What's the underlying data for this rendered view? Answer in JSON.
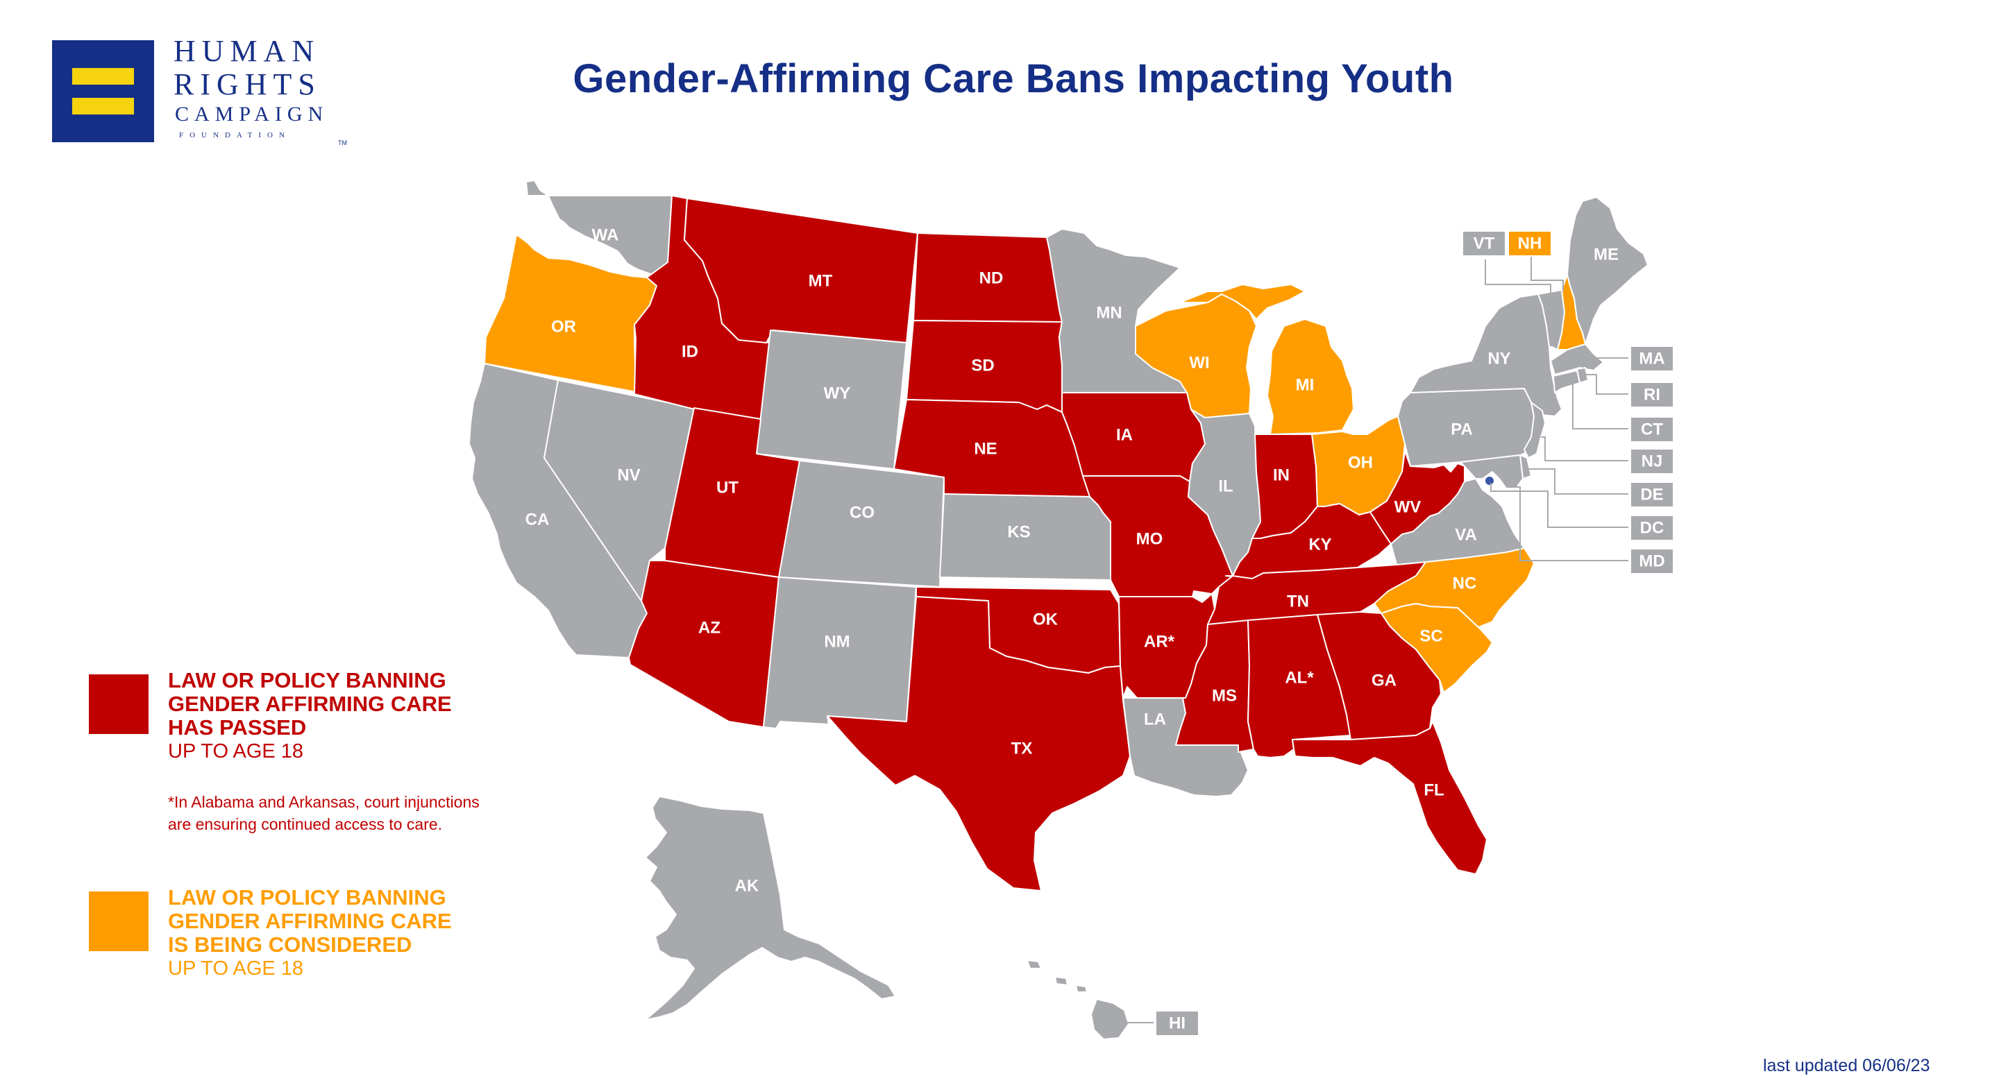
{
  "logo": {
    "line1": "HUMAN",
    "line2": "RIGHTS",
    "line3": "CAMPAIGN",
    "line4": "FOUNDATION",
    "tm": "TM",
    "mark_color": "#152f86",
    "bar_color": "#f5d40f"
  },
  "title": "Gender-Affirming Care Bans Impacting Youth",
  "legend": [
    {
      "heading": [
        "LAW OR POLICY BANNING",
        "GENDER AFFIRMING CARE",
        "HAS PASSED"
      ],
      "sub": "UP TO AGE 18",
      "color": "#c00000"
    },
    {
      "heading": [
        "LAW OR POLICY BANNING",
        "GENDER AFFIRMING CARE",
        "IS BEING CONSIDERED"
      ],
      "sub": "UP TO AGE 18",
      "color": "#ff9d00"
    }
  ],
  "footnote": [
    "*In Alabama and Arkansas, court injunctions",
    "are ensuring continued access to care."
  ],
  "last_updated": "last updated 06/06/23",
  "status_colors": {
    "passed": "#c00000",
    "considered": "#ff9d00",
    "none": "#a7a9ac"
  },
  "states": {
    "WA": {
      "label": "WA",
      "status": "none"
    },
    "OR": {
      "label": "OR",
      "status": "considered"
    },
    "CA": {
      "label": "CA",
      "status": "none"
    },
    "ID": {
      "label": "ID",
      "status": "passed"
    },
    "NV": {
      "label": "NV",
      "status": "none"
    },
    "MT": {
      "label": "MT",
      "status": "passed"
    },
    "WY": {
      "label": "WY",
      "status": "none"
    },
    "UT": {
      "label": "UT",
      "status": "passed"
    },
    "AZ": {
      "label": "AZ",
      "status": "passed"
    },
    "CO": {
      "label": "CO",
      "status": "none"
    },
    "NM": {
      "label": "NM",
      "status": "none"
    },
    "ND": {
      "label": "ND",
      "status": "passed"
    },
    "SD": {
      "label": "SD",
      "status": "passed"
    },
    "NE": {
      "label": "NE",
      "status": "passed"
    },
    "KS": {
      "label": "KS",
      "status": "none"
    },
    "OK": {
      "label": "OK",
      "status": "passed"
    },
    "TX": {
      "label": "TX",
      "status": "passed"
    },
    "MN": {
      "label": "MN",
      "status": "none"
    },
    "IA": {
      "label": "IA",
      "status": "passed"
    },
    "MO": {
      "label": "MO",
      "status": "passed"
    },
    "AR": {
      "label": "AR*",
      "status": "passed"
    },
    "LA": {
      "label": "LA",
      "status": "none"
    },
    "WI": {
      "label": "WI",
      "status": "considered"
    },
    "IL": {
      "label": "IL",
      "status": "none"
    },
    "MI": {
      "label": "MI",
      "status": "considered"
    },
    "IN": {
      "label": "IN",
      "status": "passed"
    },
    "OH": {
      "label": "OH",
      "status": "considered"
    },
    "KY": {
      "label": "KY",
      "status": "passed"
    },
    "TN": {
      "label": "TN",
      "status": "passed"
    },
    "MS": {
      "label": "MS",
      "status": "passed"
    },
    "AL": {
      "label": "AL*",
      "status": "passed"
    },
    "GA": {
      "label": "GA",
      "status": "passed"
    },
    "FL": {
      "label": "FL",
      "status": "passed"
    },
    "SC": {
      "label": "SC",
      "status": "considered"
    },
    "NC": {
      "label": "NC",
      "status": "considered"
    },
    "VA": {
      "label": "VA",
      "status": "none"
    },
    "WV": {
      "label": "WV",
      "status": "passed"
    },
    "PA": {
      "label": "PA",
      "status": "none"
    },
    "NY": {
      "label": "NY",
      "status": "none"
    },
    "VT": {
      "label": "VT",
      "status": "none"
    },
    "NH": {
      "label": "NH",
      "status": "considered"
    },
    "ME": {
      "label": "ME",
      "status": "none"
    },
    "MA": {
      "label": "MA",
      "status": "none"
    },
    "RI": {
      "label": "RI",
      "status": "none"
    },
    "CT": {
      "label": "CT",
      "status": "none"
    },
    "NJ": {
      "label": "NJ",
      "status": "none"
    },
    "DE": {
      "label": "DE",
      "status": "none"
    },
    "MD": {
      "label": "MD",
      "status": "none"
    },
    "DC": {
      "label": "DC",
      "status": "none"
    },
    "AK": {
      "label": "AK",
      "status": "none"
    },
    "HI": {
      "label": "HI",
      "status": "none"
    }
  }
}
